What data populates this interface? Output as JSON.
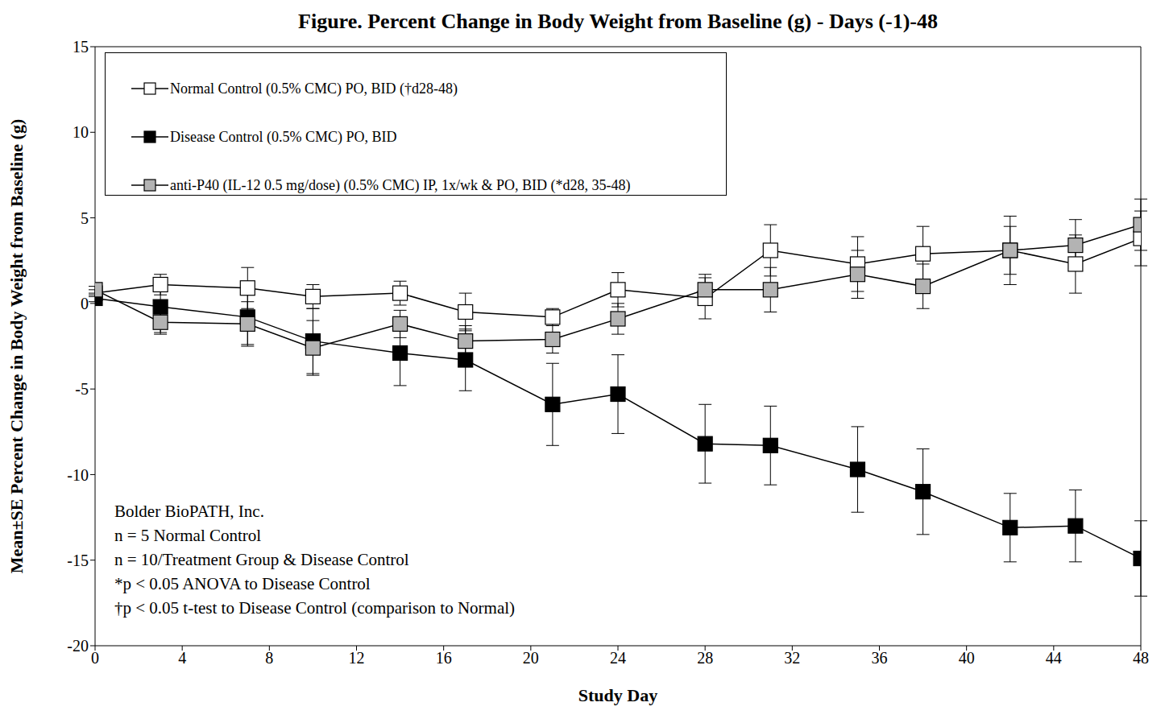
{
  "chart_data": {
    "type": "line",
    "title": "Figure. Percent Change in Body Weight from Baseline (g) - Days (-1)-48",
    "x_label": "Study Day",
    "y_label": "Mean±SE Percent Change in Body Weight from Baseline (g)",
    "x": [
      0,
      3,
      7,
      10,
      14,
      17,
      21,
      24,
      28,
      31,
      35,
      38,
      42,
      45,
      48
    ],
    "series": [
      {
        "name": "Normal Control (0.5% CMC) PO, BID (†d28-48)",
        "color": "#ffffff",
        "marker": "square",
        "values": [
          0.6,
          1.1,
          0.9,
          0.4,
          0.6,
          -0.5,
          -0.8,
          0.8,
          0.3,
          3.1,
          2.3,
          2.9,
          3.1,
          2.3,
          3.8
        ],
        "errors": [
          0.2,
          0.6,
          1.2,
          0.7,
          0.7,
          1.1,
          0.5,
          1.0,
          1.2,
          1.5,
          1.6,
          1.6,
          1.4,
          1.7,
          1.6
        ]
      },
      {
        "name": "Disease Control (0.5% CMC) PO, BID",
        "color": "#000000",
        "marker": "square",
        "values": [
          0.3,
          -0.2,
          -0.8,
          -2.2,
          -2.9,
          -3.3,
          -5.9,
          -5.3,
          -8.2,
          -8.3,
          -9.7,
          -11.0,
          -13.1,
          -13.0,
          -14.9
        ],
        "errors": [
          0.2,
          1.5,
          1.6,
          1.9,
          1.9,
          1.8,
          2.4,
          2.3,
          2.3,
          2.3,
          2.5,
          2.5,
          2.0,
          2.1,
          2.2
        ]
      },
      {
        "name": "anti-P40 (IL-12 0.5 mg/dose) (0.5% CMC) IP, 1x/wk & PO, BID (*d28, 35-48)",
        "color": "#b3b3b3",
        "marker": "square",
        "values": [
          0.8,
          -1.1,
          -1.2,
          -2.6,
          -1.2,
          -2.2,
          -2.1,
          -0.9,
          0.8,
          0.8,
          1.7,
          1.0,
          3.1,
          3.4,
          4.6
        ],
        "errors": [
          0.2,
          0.7,
          1.3,
          1.6,
          0.8,
          0.9,
          0.8,
          0.9,
          0.9,
          1.3,
          1.4,
          1.3,
          2.0,
          1.5,
          1.5
        ]
      }
    ],
    "xlim": [
      0,
      48
    ],
    "xticks": [
      0,
      4,
      8,
      12,
      16,
      20,
      24,
      28,
      32,
      36,
      40,
      44,
      48
    ],
    "ylim": [
      -20,
      15
    ],
    "yticks": [
      -20,
      -15,
      -10,
      -5,
      0,
      5,
      10,
      15
    ],
    "grid": false,
    "legend": "upper left",
    "annotations": [
      "Bolder BioPATH, Inc.",
      "n = 5 Normal Control",
      "n = 10/Treatment Group & Disease Control",
      "*p < 0.05 ANOVA to Disease Control",
      "†p < 0.05 t-test to Disease Control (comparison to Normal)"
    ]
  }
}
